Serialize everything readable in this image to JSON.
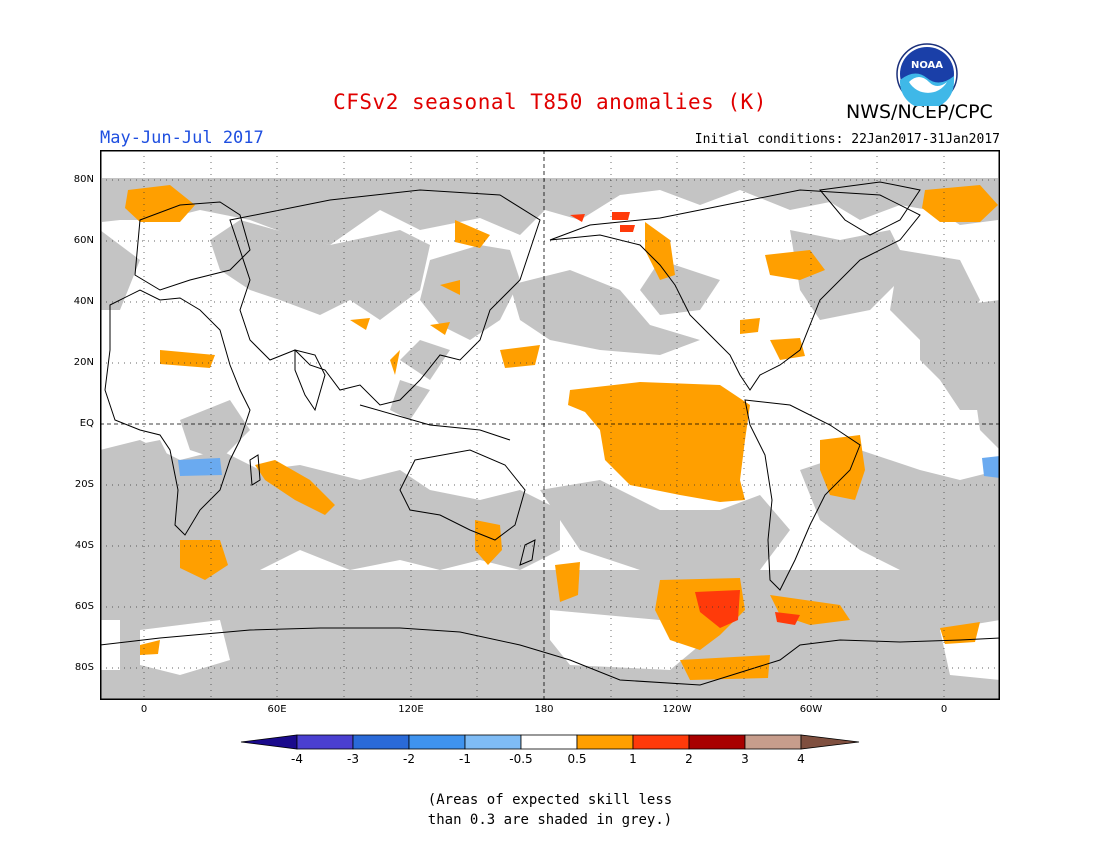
{
  "title": "CFSv2 seasonal T850 anomalies (K)",
  "period": "May-Jun-Jul 2017",
  "agency": "NWS/NCEP/CPC",
  "logo_text": "NOAA",
  "initial_conditions": "Initial conditions: 22Jan2017-31Jan2017",
  "lat_labels": [
    "80N",
    "60N",
    "40N",
    "20N",
    "EQ",
    "20S",
    "40S",
    "60S",
    "80S"
  ],
  "lon_labels": [
    "0",
    "60E",
    "120E",
    "180",
    "120W",
    "60W",
    "0"
  ],
  "colorbar": {
    "labels": [
      "-4",
      "-3",
      "-2",
      "-1",
      "-0.5",
      "0.5",
      "1",
      "2",
      "3",
      "4"
    ],
    "colors": [
      "#1a0a8c",
      "#4a3fd0",
      "#2a6ad8",
      "#3f93ee",
      "#7fbcf5",
      "#ffffff",
      "#ff9f00",
      "#ff3a0a",
      "#a80000",
      "#c79d8c",
      "#7f4f3f"
    ]
  },
  "note": {
    "line1": "(Areas of expected skill less",
    "line2": "than 0.3 are shaded in grey.)"
  },
  "colors": {
    "grey": "#c4c4c4",
    "anomaly_05_1": "#ff9f00",
    "anomaly_1_2": "#ff3a0a",
    "anomaly_neg": "#6aaaf0"
  }
}
